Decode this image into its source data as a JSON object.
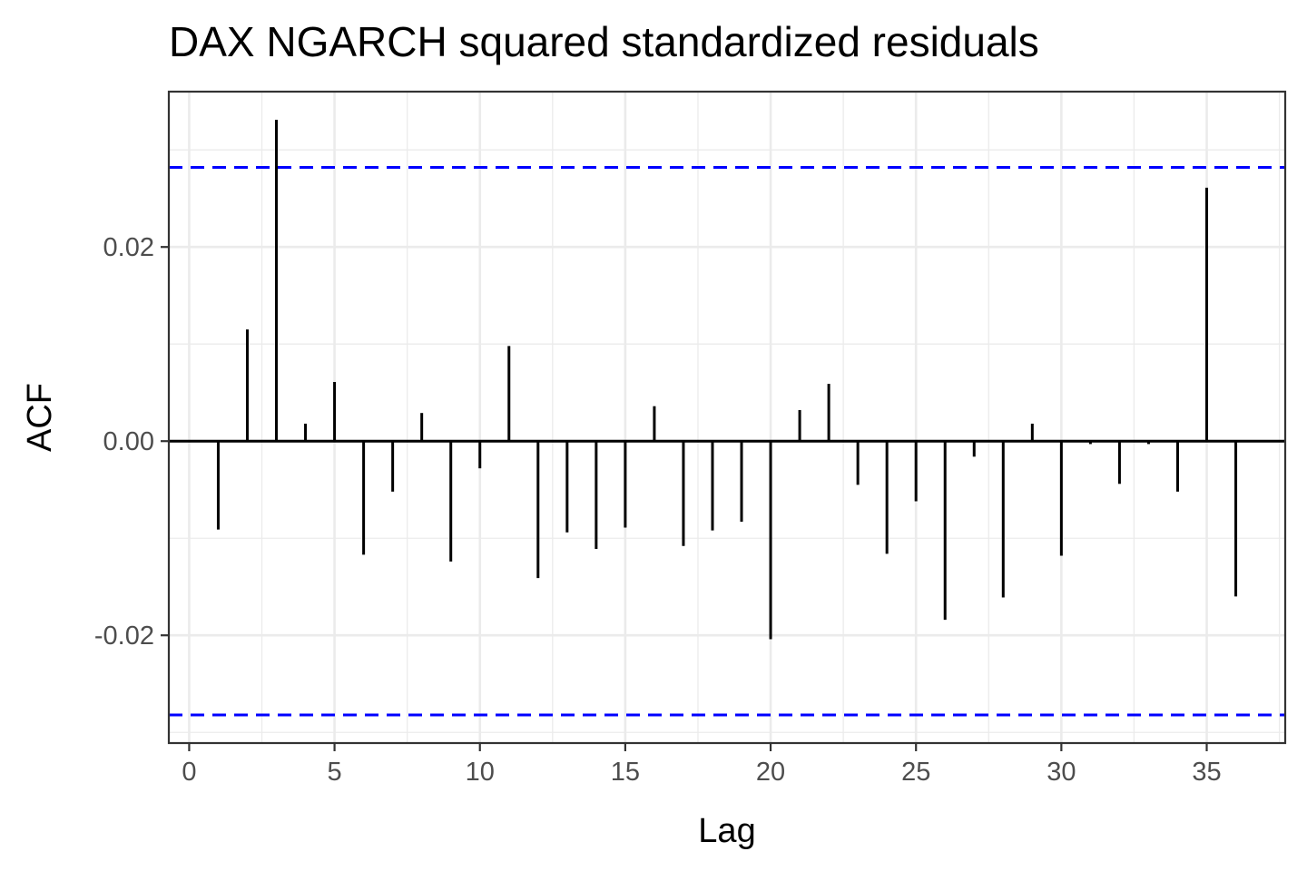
{
  "chart_data": {
    "type": "bar",
    "title": "DAX NGARCH squared standardized residuals",
    "xlabel": "Lag",
    "ylabel": "ACF",
    "xlim": [
      -0.7,
      37.7
    ],
    "ylim": [
      -0.0311,
      0.036
    ],
    "x_ticks": [
      0,
      5,
      10,
      15,
      20,
      25,
      30,
      35
    ],
    "x_tick_labels": [
      "0",
      "5",
      "10",
      "15",
      "20",
      "25",
      "30",
      "35"
    ],
    "y_ticks": [
      -0.02,
      0.0,
      0.02
    ],
    "y_tick_labels": [
      "-0.02",
      "0.00",
      "0.02"
    ],
    "grid": true,
    "lags": [
      1,
      2,
      3,
      4,
      5,
      6,
      7,
      8,
      9,
      10,
      11,
      12,
      13,
      14,
      15,
      16,
      17,
      18,
      19,
      20,
      21,
      22,
      23,
      24,
      25,
      26,
      27,
      28,
      29,
      30,
      31,
      32,
      33,
      34,
      35,
      36
    ],
    "values": [
      -0.0091,
      0.0115,
      0.0331,
      0.0018,
      0.0061,
      -0.0117,
      -0.0052,
      0.0029,
      -0.0124,
      -0.0028,
      0.0098,
      -0.0141,
      -0.0094,
      -0.0111,
      -0.0089,
      0.0036,
      -0.0108,
      -0.0092,
      -0.0083,
      -0.0204,
      0.0032,
      0.0059,
      -0.0045,
      -0.0116,
      -0.0062,
      -0.0184,
      -0.0016,
      -0.0161,
      0.0018,
      -0.0118,
      -0.0003,
      -0.0044,
      -0.0003,
      -0.0052,
      0.0261,
      -0.016
    ],
    "confidence_bounds": [
      0.0282,
      -0.0282
    ],
    "colors": {
      "bars": "#000000",
      "confidence": "#0000ff",
      "grid": "#ebebeb",
      "panel_border": "#333333",
      "tick_text": "#4d4d4d"
    }
  }
}
